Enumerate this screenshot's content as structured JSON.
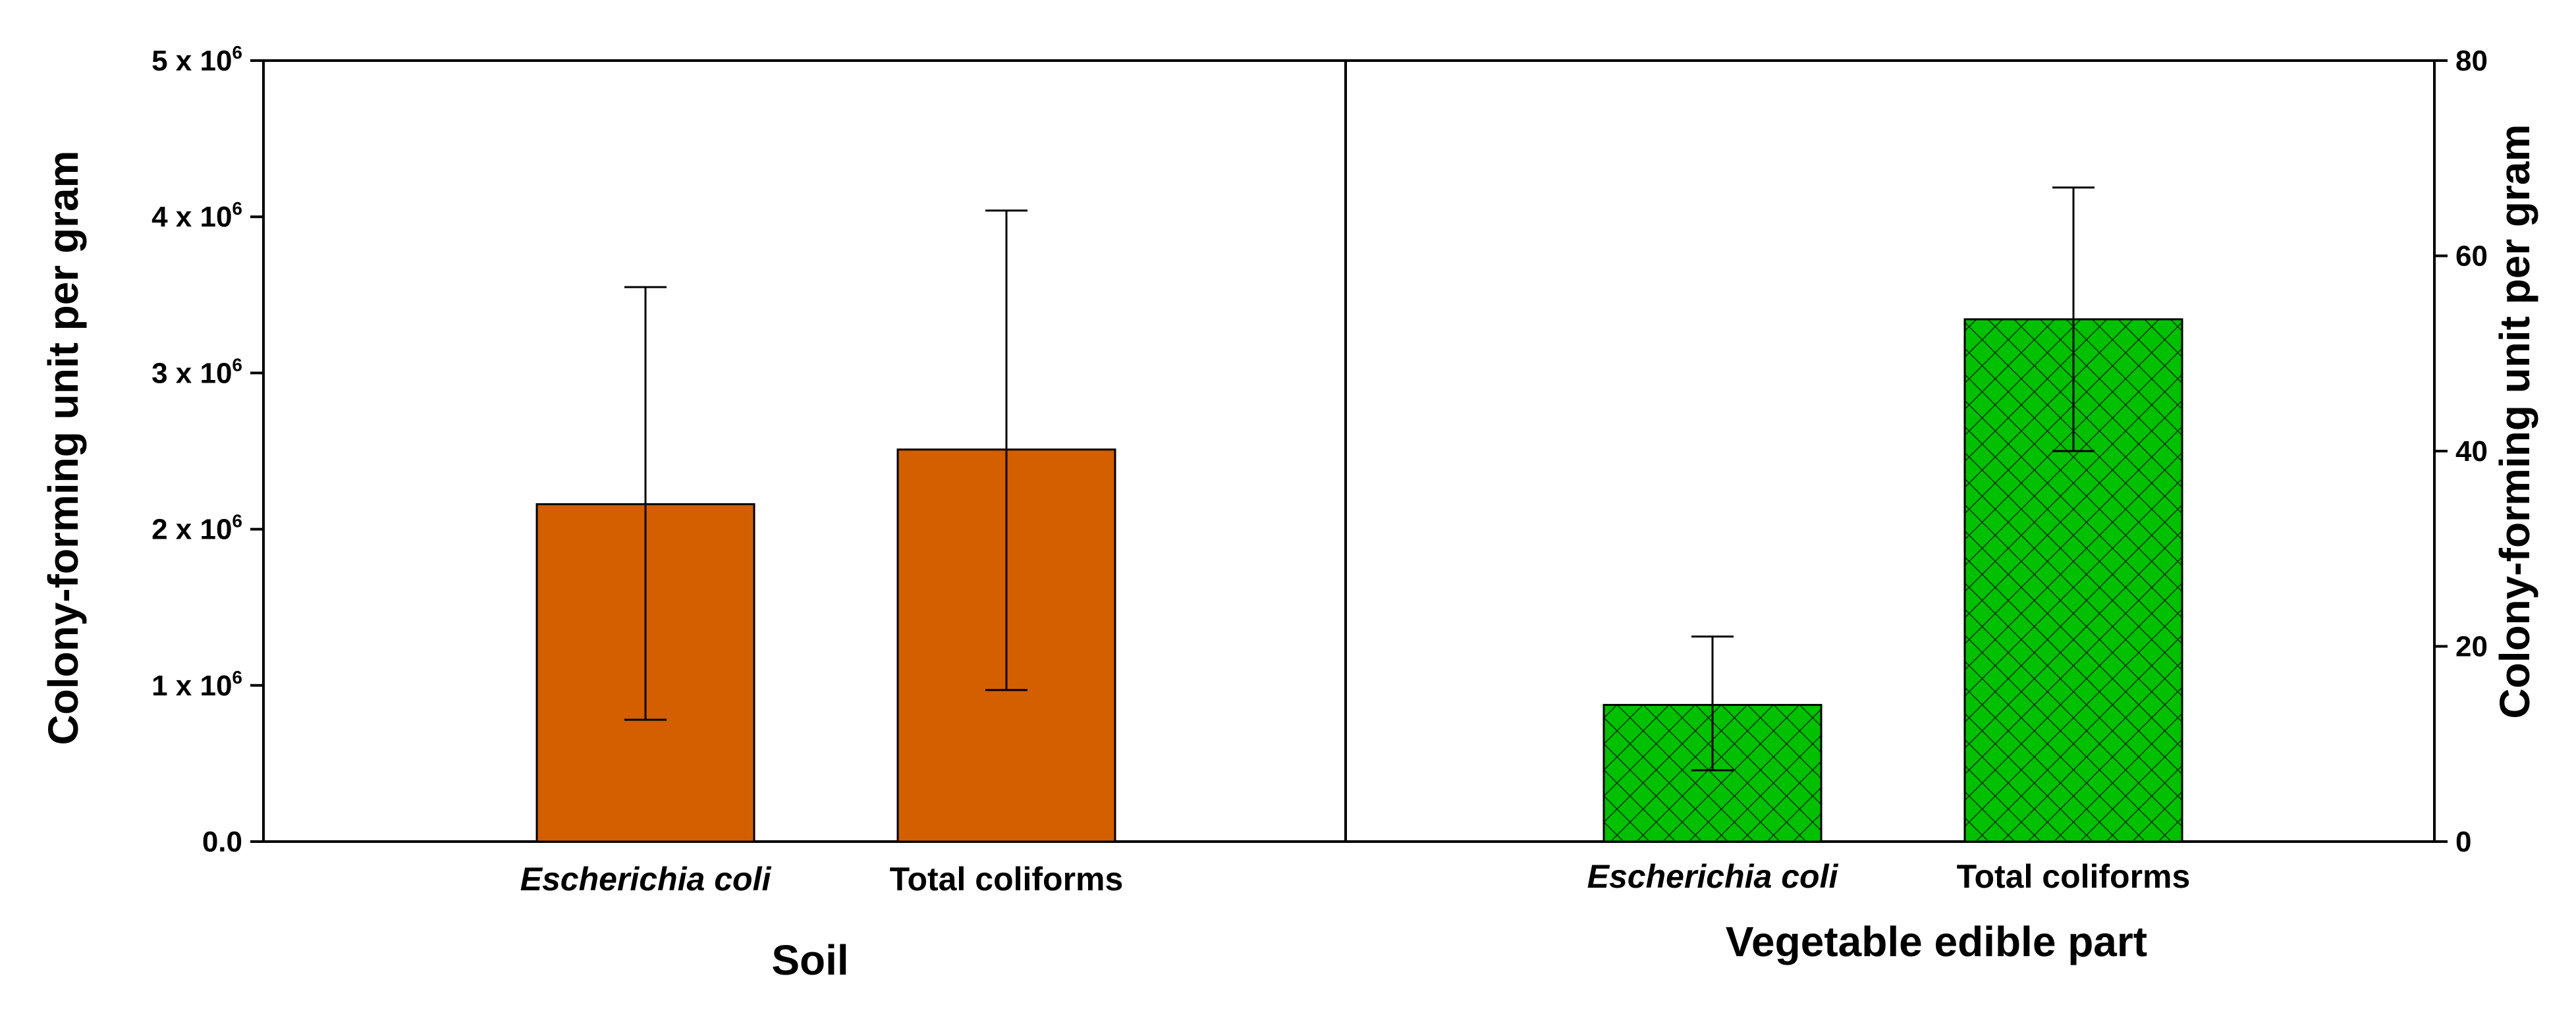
{
  "chart_data": [
    {
      "type": "bar",
      "title": "Soil",
      "xlabel": "Soil",
      "ylabel": "Colony-forming unit per gram",
      "y_axis_side": "left",
      "ylim": [
        0,
        5000000
      ],
      "yticks": [
        {
          "value": 0,
          "base": "0.0",
          "exp": ""
        },
        {
          "value": 1000000,
          "base": "1 x 10",
          "exp": "6"
        },
        {
          "value": 2000000,
          "base": "2 x 10",
          "exp": "6"
        },
        {
          "value": 3000000,
          "base": "3 x 10",
          "exp": "6"
        },
        {
          "value": 4000000,
          "base": "4 x 10",
          "exp": "6"
        },
        {
          "value": 5000000,
          "base": "5 x 10",
          "exp": "6"
        }
      ],
      "categories": [
        "Escherichia coli",
        "Total coliforms"
      ],
      "italic_categories": [
        true,
        false
      ],
      "values": [
        2160000,
        2510000
      ],
      "error_low": [
        780000,
        970000
      ],
      "error_high": [
        3550000,
        4040000
      ],
      "bar_color": "#d35f00",
      "pattern": "solid"
    },
    {
      "type": "bar",
      "title": "Vegetable edible part",
      "xlabel": "Vegetable edible part",
      "ylabel": "Colony-forming unit per gram",
      "y_axis_side": "right",
      "ylim": [
        0,
        80
      ],
      "yticks": [
        {
          "value": 0,
          "base": "0",
          "exp": ""
        },
        {
          "value": 20,
          "base": "20",
          "exp": ""
        },
        {
          "value": 40,
          "base": "40",
          "exp": ""
        },
        {
          "value": 60,
          "base": "60",
          "exp": ""
        },
        {
          "value": 80,
          "base": "80",
          "exp": ""
        }
      ],
      "categories": [
        "Escherichia coli",
        "Total coliforms"
      ],
      "italic_categories": [
        true,
        false
      ],
      "values": [
        14,
        53.5
      ],
      "error_low": [
        7.3,
        40
      ],
      "error_high": [
        21,
        67
      ],
      "bar_color": "#00c000",
      "pattern": "crosshatch"
    }
  ]
}
